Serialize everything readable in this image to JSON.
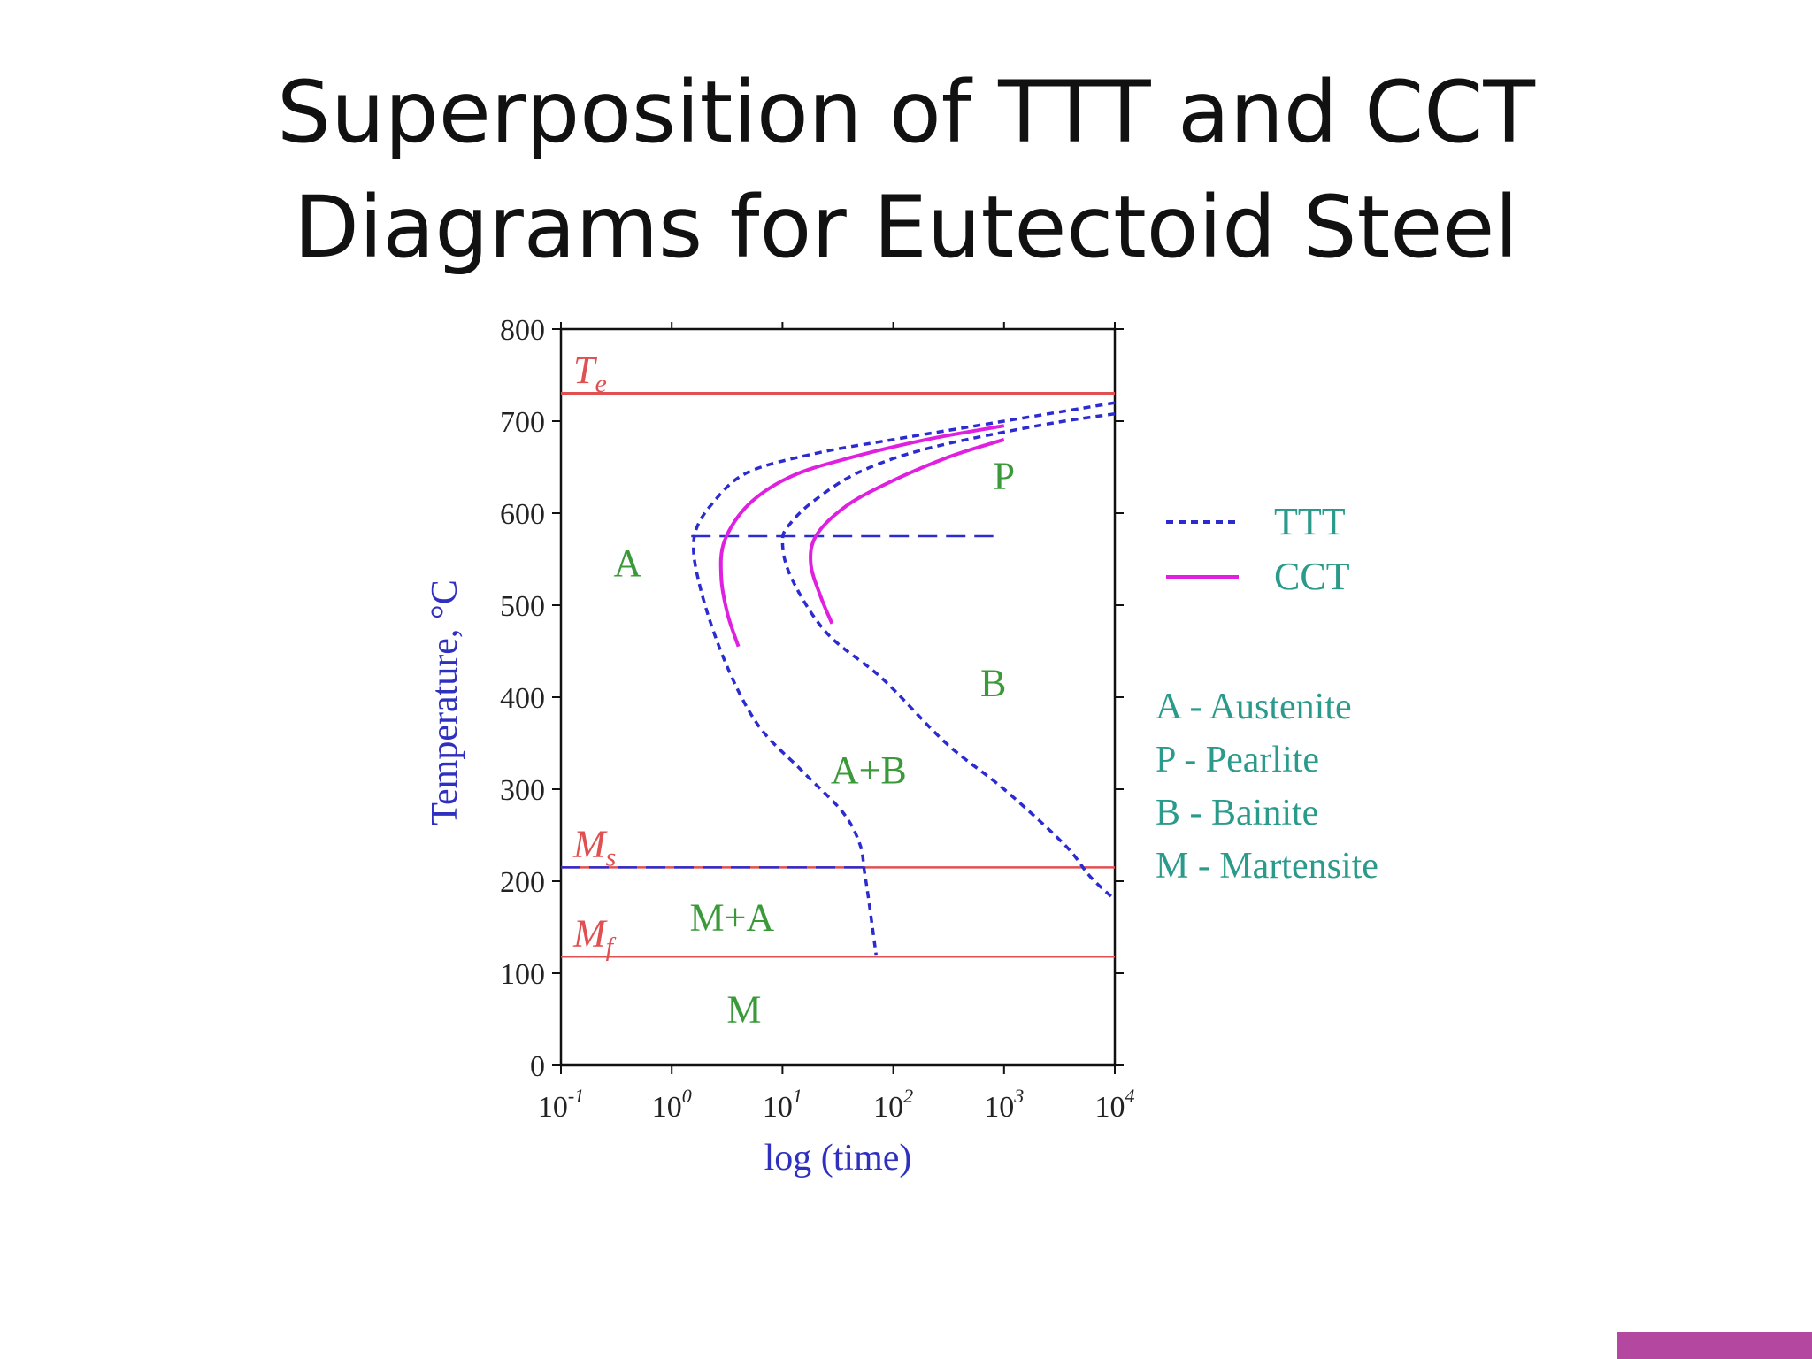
{
  "slide": {
    "title_line1": "Superposition of TTT and CCT",
    "title_line2": "Diagrams for Eutectoid Steel",
    "accent_bar_color": "#b4479f"
  },
  "chart_data": {
    "type": "line",
    "xlabel": "log (time)",
    "ylabel": "Temperature, °C",
    "x_scale": "log",
    "xlim": [
      0.1,
      10000
    ],
    "ylim": [
      0,
      800
    ],
    "x_ticks": [
      {
        "value": 0.1,
        "base": "10",
        "exp": "-1"
      },
      {
        "value": 1,
        "base": "10",
        "exp": "0"
      },
      {
        "value": 10,
        "base": "10",
        "exp": "1"
      },
      {
        "value": 100,
        "base": "10",
        "exp": "2"
      },
      {
        "value": 1000,
        "base": "10",
        "exp": "3"
      },
      {
        "value": 10000,
        "base": "10",
        "exp": "4"
      }
    ],
    "y_ticks": [
      0,
      100,
      200,
      300,
      400,
      500,
      600,
      700,
      800
    ],
    "grid": false,
    "colors": {
      "ttt": "#2b2bd0",
      "cct": "#e020e0",
      "reference": "#e05050",
      "region_label": "#3a9a3a",
      "axis_label": "#3030c0",
      "legend_text": "#2a9a8a"
    },
    "reference_lines": [
      {
        "label": "T",
        "sub": "e",
        "y": 730
      },
      {
        "label": "M",
        "sub": "s",
        "y": 215
      },
      {
        "label": "M",
        "sub": "f",
        "y": 118
      }
    ],
    "series": [
      {
        "name": "TTT",
        "style": "dotted",
        "points": [
          [
            10000,
            720
          ],
          [
            1000,
            700
          ],
          [
            100,
            680
          ],
          [
            20,
            665
          ],
          [
            5,
            645
          ],
          [
            2.5,
            615
          ],
          [
            1.6,
            575
          ],
          [
            1.8,
            520
          ],
          [
            3,
            440
          ],
          [
            6,
            370
          ],
          [
            15,
            320
          ],
          [
            35,
            275
          ],
          [
            50,
            240
          ],
          [
            55,
            210
          ],
          [
            60,
            180
          ],
          [
            70,
            120
          ]
        ]
      },
      {
        "name": "TTT",
        "style": "dotted",
        "points": [
          [
            10000,
            708
          ],
          [
            2000,
            695
          ],
          [
            200,
            670
          ],
          [
            50,
            645
          ],
          [
            20,
            615
          ],
          [
            12,
            590
          ],
          [
            10,
            570
          ],
          [
            12,
            530
          ],
          [
            25,
            470
          ],
          [
            80,
            420
          ],
          [
            300,
            350
          ],
          [
            1000,
            300
          ],
          [
            3500,
            240
          ],
          [
            6000,
            205
          ],
          [
            10000,
            180
          ]
        ]
      },
      {
        "name": "TTT",
        "style": "dashed",
        "points": [
          [
            1.5,
            575
          ],
          [
            800,
            575
          ]
        ]
      },
      {
        "name": "TTT",
        "style": "dashed",
        "points": [
          [
            0.1,
            215
          ],
          [
            55,
            215
          ]
        ]
      },
      {
        "name": "CCT",
        "style": "solid",
        "points": [
          [
            1000,
            695
          ],
          [
            200,
            680
          ],
          [
            40,
            660
          ],
          [
            12,
            640
          ],
          [
            5,
            610
          ],
          [
            3,
            570
          ],
          [
            2.8,
            530
          ],
          [
            3.2,
            490
          ],
          [
            4,
            455
          ]
        ]
      },
      {
        "name": "CCT",
        "style": "solid",
        "points": [
          [
            1000,
            680
          ],
          [
            300,
            660
          ],
          [
            80,
            630
          ],
          [
            35,
            605
          ],
          [
            20,
            575
          ],
          [
            18,
            545
          ],
          [
            22,
            510
          ],
          [
            28,
            480
          ]
        ]
      }
    ],
    "region_labels": [
      {
        "text": "A",
        "x": 0.4,
        "y": 545
      },
      {
        "text": "P",
        "x": 1000,
        "y": 640
      },
      {
        "text": "B",
        "x": 800,
        "y": 415
      },
      {
        "text": "A+B",
        "x": 60,
        "y": 320
      },
      {
        "text": "M+A",
        "x": 3.5,
        "y": 160
      },
      {
        "text": "M",
        "x": 4.5,
        "y": 60
      }
    ],
    "legend": {
      "placement": "right",
      "entries": [
        {
          "name": "TTT",
          "style": "dotted"
        },
        {
          "name": "CCT",
          "style": "solid"
        }
      ],
      "key": [
        "A - Austenite",
        "P  - Pearlite",
        "B  - Bainite",
        "M - Martensite"
      ]
    }
  }
}
